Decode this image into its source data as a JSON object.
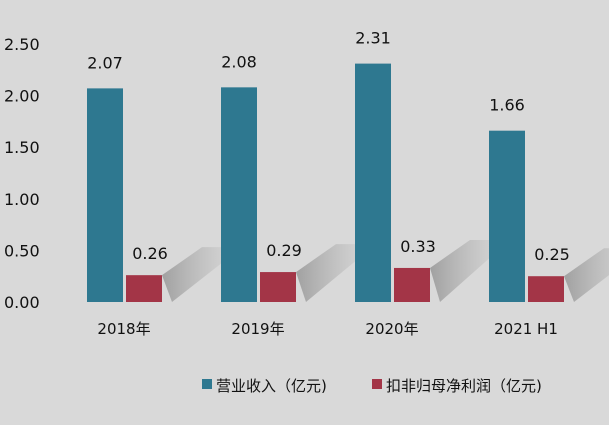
{
  "chart_data": {
    "type": "bar",
    "categories": [
      "2018年",
      "2019年",
      "2020年",
      "2021 H1"
    ],
    "series": [
      {
        "name": "营业收入（亿元)",
        "values": [
          2.07,
          2.08,
          2.31,
          1.66
        ],
        "color": "#2e7890"
      },
      {
        "name": "扣非归母净利润（亿元)",
        "values": [
          0.26,
          0.29,
          0.33,
          0.25
        ],
        "color": "#a33547"
      }
    ],
    "yticks": [
      "0.00",
      "0.50",
      "1.00",
      "1.50",
      "2.00",
      "2.50"
    ],
    "ylim": [
      0,
      2.5
    ],
    "grid": false,
    "legend": "bottom",
    "data_labels": true,
    "background": "#d9d9d9"
  }
}
